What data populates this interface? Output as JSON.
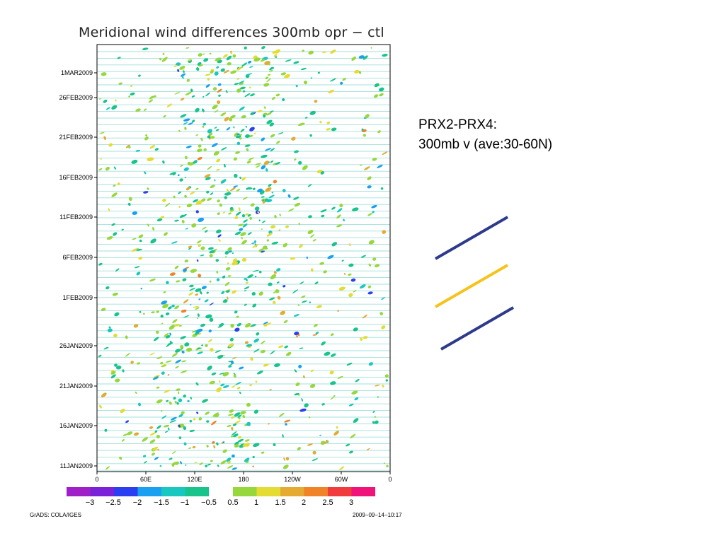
{
  "chart_data": {
    "type": "heatmap",
    "title": "Meridional wind differences 300mb opr − ctl",
    "xlabel": "",
    "ylabel": "",
    "x_ticks": [
      "0",
      "60E",
      "120E",
      "180",
      "120W",
      "60W",
      "0"
    ],
    "x_range": [
      0,
      360
    ],
    "y_ticks": [
      "11JAN2009",
      "16JAN2009",
      "21JAN2009",
      "26JAN2009",
      "1FEB2009",
      "6FEB2009",
      "11FEB2009",
      "16FEB2009",
      "21FEB2009",
      "26FEB2009",
      "1MAR2009"
    ],
    "y_range": [
      "10JAN2009",
      "4MAR2009"
    ],
    "contour_levels": [
      "-3",
      "-2.5",
      "-2",
      "-1.5",
      "-1",
      "-0.5",
      "0.5",
      "1",
      "1.5",
      "2",
      "2.5",
      "3"
    ],
    "colorbar": {
      "negative_colors": [
        "#a020c8",
        "#7a22d8",
        "#2c3ff0",
        "#1aa0f0",
        "#18c8c0",
        "#18c48c"
      ],
      "positive_colors": [
        "#96d83c",
        "#e4dc32",
        "#e4aa32",
        "#f08228",
        "#f03c3c",
        "#f0147a"
      ],
      "labels": [
        "−3",
        "−2.5",
        "−2",
        "−1.5",
        "−1",
        "−0.5",
        "0.5",
        "1",
        "1.5",
        "2",
        "2.5",
        "3"
      ]
    },
    "grid": "horizontal lines (daily)",
    "legend": "bottom"
  },
  "footer": {
    "left": "GrADS: COLA/IGES",
    "right": "2009−09−14−10:17"
  },
  "annotation": {
    "line1": "PRX2-PRX4:",
    "line2": "300mb v (ave:30-60N)",
    "slash_colors": [
      "#2e3a8c",
      "#f5c31b",
      "#2e3a8c"
    ]
  }
}
